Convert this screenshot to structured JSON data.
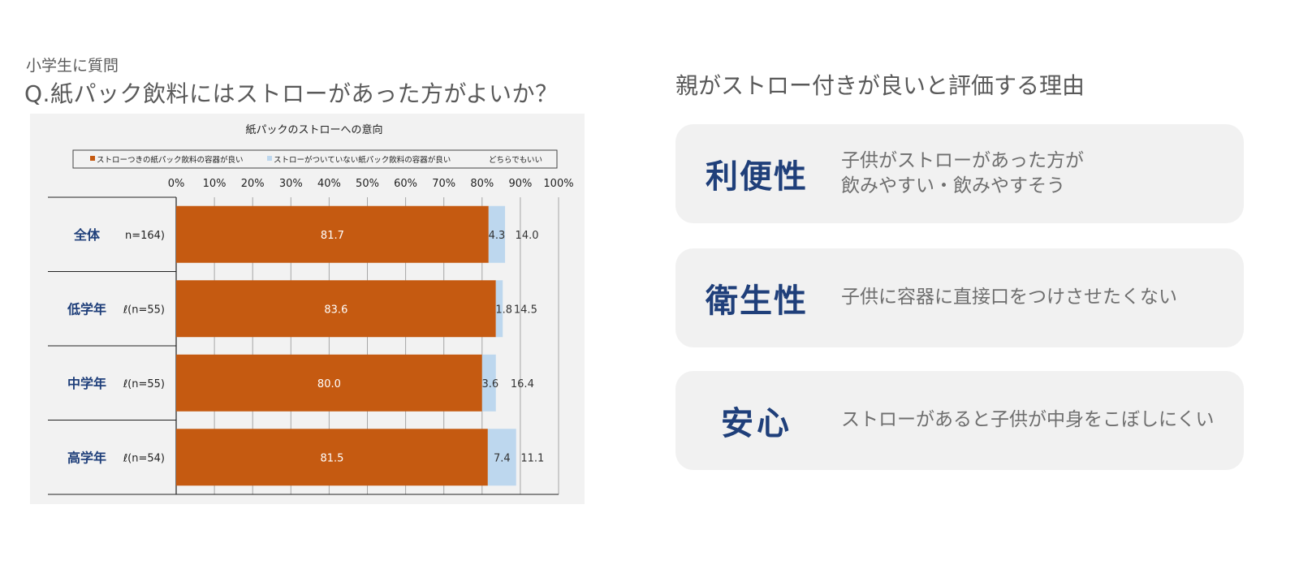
{
  "header": {
    "subtitle": "小学生に質問",
    "question": "Q.紙パック飲料にはストローがあった方がよいか？"
  },
  "right_panel": {
    "title": "親がストロー付きが良いと評価する理由",
    "cards": [
      {
        "keyword": "利便性",
        "lines": [
          "子供がストローがあった方が",
          "飲みやすい・飲みやすそう"
        ]
      },
      {
        "keyword": "衛生性",
        "lines": [
          "子供に容器に直接口をつけさせたくない"
        ]
      },
      {
        "keyword": "安心",
        "lines": [
          "ストローがあると子供が中身をこぼしにくい"
        ]
      }
    ]
  },
  "chart_data": {
    "type": "bar",
    "orientation": "horizontal",
    "stacked": true,
    "title": "紙パックのストローへの意向",
    "categories": [
      "全体",
      "低学年",
      "中学年",
      "高学年"
    ],
    "sample_labels": [
      "n=164)",
      "ℓ(n=55)",
      "ℓ(n=55)",
      "ℓ(n=54)"
    ],
    "xlim": [
      0,
      100
    ],
    "x_ticks": [
      "0%",
      "10%",
      "20%",
      "30%",
      "40%",
      "50%",
      "60%",
      "70%",
      "80%",
      "90%",
      "100%"
    ],
    "legend_position": "top",
    "grid": true,
    "series": [
      {
        "name": "ストローつきの紙パック飲料の容器が良い",
        "color": "#c55a11",
        "label_color": "#ffffff",
        "values": [
          81.7,
          83.6,
          80.0,
          81.5
        ],
        "labels": [
          "81.7",
          "83.6",
          "80.0",
          "81.5"
        ]
      },
      {
        "name": "ストローがついていない紙パック飲料の容器が良い",
        "color": "#bdd7ee",
        "label_color": "#333333",
        "values": [
          4.3,
          1.8,
          3.6,
          7.4
        ],
        "labels": [
          "4.3",
          "1.8",
          "3.6",
          "7.4"
        ]
      },
      {
        "name": "どちらでもいい",
        "color": "#f2f2f2",
        "label_color": "#333333",
        "values": [
          14.0,
          14.5,
          16.4,
          11.1
        ],
        "labels": [
          "14.0",
          "14.5",
          "16.4",
          "11.1"
        ]
      }
    ]
  }
}
